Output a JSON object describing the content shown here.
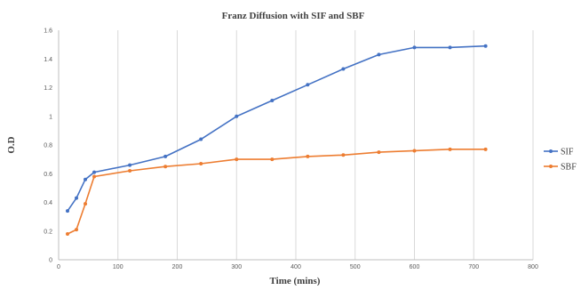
{
  "chart_data": {
    "type": "line",
    "title": "Franz Diffusion  with  SIF and SBF",
    "xlabel": "Time (mins)",
    "ylabel": "O.D",
    "xlim": [
      0,
      800
    ],
    "ylim": [
      0,
      1.6
    ],
    "x_ticks": [
      "0",
      "100",
      "200",
      "300",
      "400",
      "500",
      "600",
      "700",
      "800"
    ],
    "y_ticks": [
      "0",
      "0.2",
      "0.4",
      "0.6",
      "0.8",
      "1",
      "1.2",
      "1.4",
      "1.6"
    ],
    "grid": "vertical",
    "legend_position": "right",
    "series": [
      {
        "name": "SIF",
        "color": "#4472C4",
        "points": [
          [
            15,
            0.34
          ],
          [
            30,
            0.43
          ],
          [
            45,
            0.56
          ],
          [
            60,
            0.61
          ],
          [
            120,
            0.66
          ],
          [
            180,
            0.72
          ],
          [
            240,
            0.84
          ],
          [
            300,
            1.0
          ],
          [
            360,
            1.11
          ],
          [
            420,
            1.22
          ],
          [
            480,
            1.33
          ],
          [
            540,
            1.43
          ],
          [
            600,
            1.48
          ],
          [
            660,
            1.48
          ],
          [
            720,
            1.49
          ]
        ]
      },
      {
        "name": "SBF",
        "color": "#ED7D31",
        "points": [
          [
            15,
            0.18
          ],
          [
            30,
            0.21
          ],
          [
            45,
            0.39
          ],
          [
            60,
            0.58
          ],
          [
            120,
            0.62
          ],
          [
            180,
            0.65
          ],
          [
            240,
            0.67
          ],
          [
            300,
            0.7
          ],
          [
            360,
            0.7
          ],
          [
            420,
            0.72
          ],
          [
            480,
            0.73
          ],
          [
            540,
            0.75
          ],
          [
            600,
            0.76
          ],
          [
            660,
            0.77
          ],
          [
            720,
            0.77
          ]
        ]
      }
    ]
  }
}
